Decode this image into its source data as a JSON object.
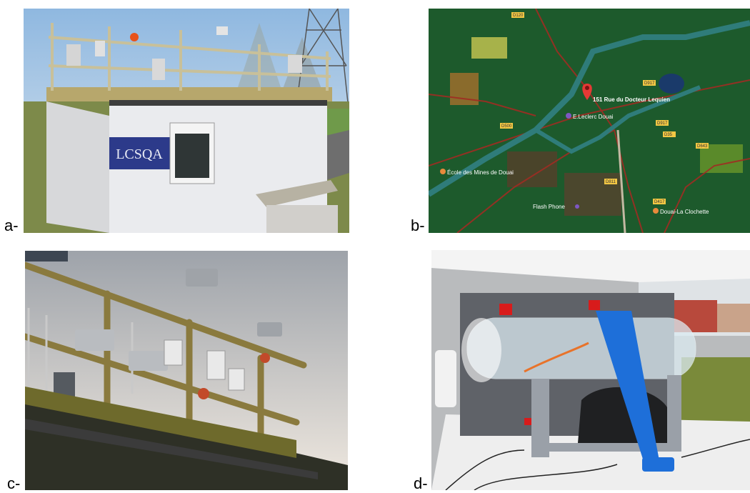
{
  "panels": {
    "a": {
      "label": "a-",
      "sign_text": "LCSQA"
    },
    "b": {
      "label": "b-",
      "map_labels": {
        "marker": "151 Rue du Docteur Lequien",
        "store": "E.Leclerc Douai",
        "school": "École des Mines de Douai",
        "shop": "Flash Phone",
        "area": "Douai-La Clochette",
        "road1": "D120",
        "road2": "D917",
        "road3": "D35",
        "road4": "D643",
        "road5": "D917",
        "road6": "D500",
        "road7": "D811",
        "road8": "D417"
      },
      "colors": {
        "marker": "#e53935",
        "background": "#1d5a2c"
      }
    },
    "c": {
      "label": "c-"
    },
    "d": {
      "label": "d-",
      "colors": {
        "strap": "#1e6fd9",
        "valve": "#d81b1b"
      }
    }
  }
}
